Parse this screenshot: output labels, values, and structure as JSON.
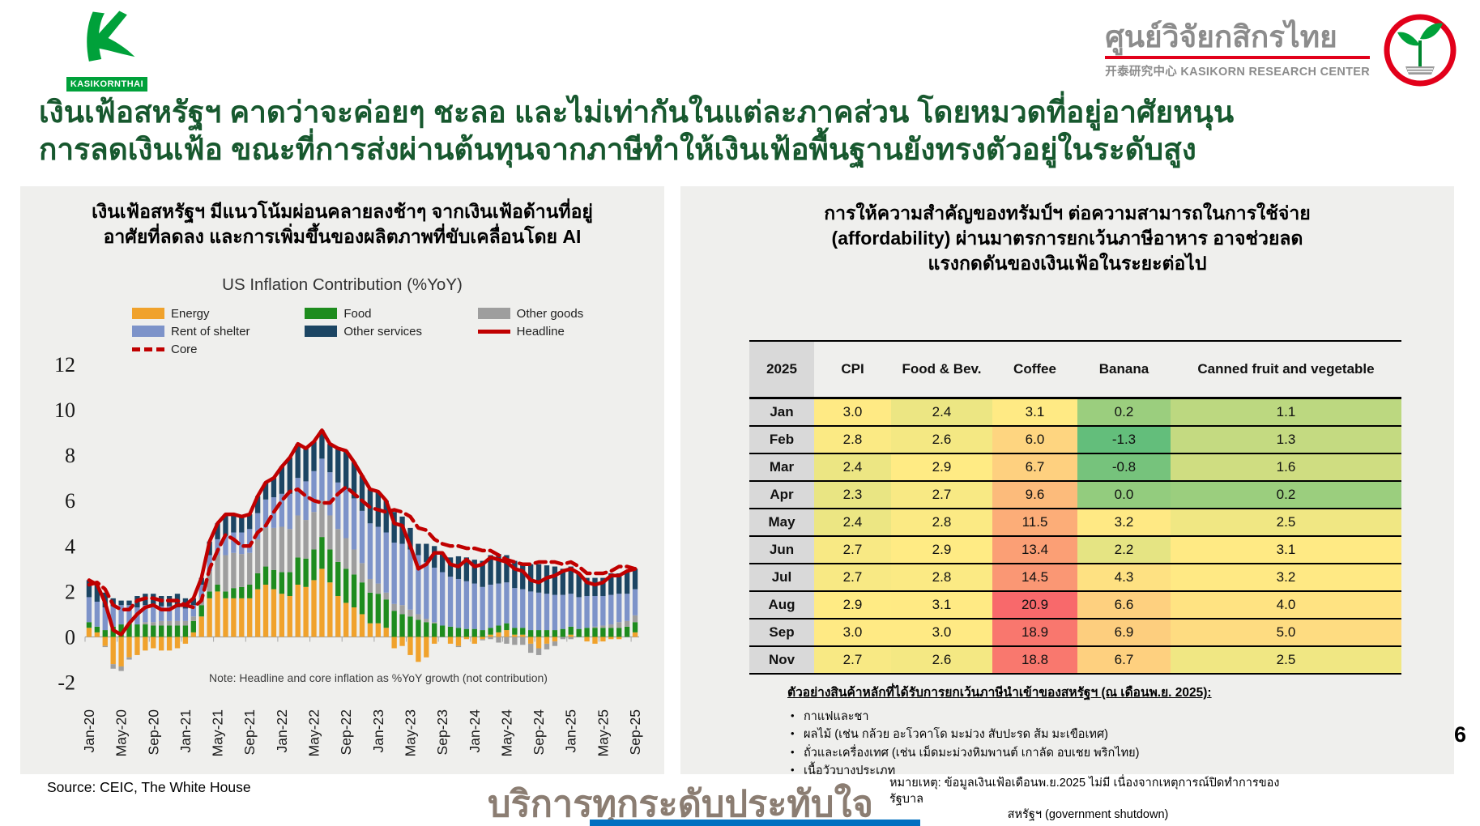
{
  "header": {
    "brand": "KASIKORNTHAI",
    "research_center_title": "ศูนย์วิจัยกสิกรไทย",
    "research_center_sub": "开泰研究中心 KASIKORN RESEARCH CENTER"
  },
  "title": {
    "line1": "เงินเฟ้อสหรัฐฯ คาดว่าจะค่อยๆ ชะลอ และไม่เท่ากันในแต่ละภาคส่วน โดยหมวดที่อยู่อาศัยหนุน",
    "line2": "การลดเงินเฟ้อ ขณะที่การส่งผ่านต้นทุนจากภาษีทำให้เงินเฟ้อพื้นฐานยังทรงตัวอยู่ในระดับสูง"
  },
  "left_panel": {
    "heading_line1": "เงินเฟ้อสหรัฐฯ มีแนวโน้มผ่อนคลายลงช้าๆ จากเงินเฟ้อด้านที่อยู่",
    "heading_line2": "อาศัยที่ลดลง และการเพิ่มขึ้นของผลิตภาพที่ขับเคลื่อนโดย AI",
    "source": "Source: CEIC, The White House"
  },
  "right_panel": {
    "heading_line1": "การให้ความสำคัญของทรัมป์ฯ ต่อความสามารถในการใช้จ่าย",
    "heading_line2": "(affordability) ผ่านมาตรการยกเว้นภาษีอาหาร อาจช่วยลด",
    "heading_line3": "แรงกดดันของเงินเฟ้อในระยะต่อไป",
    "exemptions": {
      "heading": "ตัวอย่างสินค้าหลักที่ได้รับการยกเว้นภาษีนำเข้าของสหรัฐฯ (ณ เดือนพ.ย. 2025):",
      "items": [
        "กาแฟและชา",
        "ผลไม้ (เช่น กล้วย อะโวคาโด มะม่วง สับปะรด ส้ม มะเขือเทศ)",
        "ถั่วและเครื่องเทศ (เช่น เม็ดมะม่วงหิมพานต์ เกาลัด อบเชย พริกไทย)",
        "เนื้อวัวบางประเภท"
      ]
    }
  },
  "footer": {
    "watermark": "บริการทุกระดับประทับใจ",
    "note_line1": "หมายเหตุ: ข้อมูลเงินเฟ้อเดือนพ.ย.2025 ไม่มี เนื่องจากเหตุการณ์ปิดทำการของรัฐบาล",
    "note_line2": "สหรัฐฯ (government shutdown)",
    "page_number": "6"
  },
  "chart_data": [
    {
      "type": "bar",
      "subtype": "stacked-bars-with-lines",
      "title": "US Inflation Contribution (%YoY)",
      "note": "Note: Headline and core inflation as %YoY growth (not contribution)",
      "ylim": [
        -2.8,
        12
      ],
      "yticks": [
        12,
        10,
        8,
        6,
        4,
        2,
        0,
        -2
      ],
      "xtick_labels": [
        "Jan-20",
        "May-20",
        "Sep-20",
        "Jan-21",
        "May-21",
        "Sep-21",
        "Jan-22",
        "May-22",
        "Sep-22",
        "Jan-23",
        "May-23",
        "Sep-23",
        "Jan-24",
        "May-24",
        "Sep-24",
        "Jan-25",
        "May-25",
        "Sep-25"
      ],
      "xtick_every": 4,
      "legend_rows": [
        [
          "Energy",
          "Food",
          "Other goods"
        ],
        [
          "Rent of shelter",
          "Other services",
          "Headline"
        ],
        [
          "Core"
        ]
      ],
      "series": [
        {
          "name": "Energy",
          "type": "bar",
          "color": "#F0A22C",
          "values": [
            0.4,
            0.2,
            -0.4,
            -1.2,
            -1.3,
            -0.9,
            -0.8,
            -0.6,
            -0.5,
            -0.6,
            -0.6,
            -0.5,
            -0.3,
            0.2,
            0.9,
            1.7,
            2.0,
            1.7,
            1.7,
            1.7,
            1.7,
            2.1,
            2.3,
            2.1,
            1.9,
            1.8,
            2.3,
            2.2,
            2.5,
            3.0,
            2.4,
            1.8,
            1.5,
            1.3,
            1.0,
            0.6,
            0.6,
            0.4,
            -0.5,
            -0.4,
            -0.8,
            -1.1,
            -0.9,
            -0.3,
            0.0,
            -0.3,
            -0.4,
            -0.1,
            -0.3,
            -0.1,
            0.1,
            0.2,
            0.3,
            0.1,
            0.1,
            -0.3,
            -0.5,
            -0.3,
            -0.2,
            0.0,
            0.1,
            0.0,
            -0.2,
            -0.3,
            -0.2,
            -0.1,
            -0.1,
            0.0,
            0.2
          ]
        },
        {
          "name": "Food",
          "type": "bar",
          "color": "#1E8C1E",
          "values": [
            0.25,
            0.25,
            0.3,
            0.45,
            0.55,
            0.6,
            0.55,
            0.55,
            0.5,
            0.5,
            0.5,
            0.5,
            0.5,
            0.5,
            0.5,
            0.3,
            0.3,
            0.3,
            0.45,
            0.5,
            0.6,
            0.7,
            0.8,
            0.85,
            0.95,
            1.05,
            1.2,
            1.25,
            1.35,
            1.4,
            1.45,
            1.5,
            1.5,
            1.45,
            1.4,
            1.35,
            1.3,
            1.25,
            1.15,
            1.0,
            0.9,
            0.75,
            0.65,
            0.6,
            0.5,
            0.45,
            0.4,
            0.35,
            0.35,
            0.3,
            0.3,
            0.3,
            0.3,
            0.3,
            0.3,
            0.3,
            0.3,
            0.3,
            0.3,
            0.35,
            0.35,
            0.35,
            0.4,
            0.4,
            0.4,
            0.4,
            0.4,
            0.45,
            0.45
          ]
        },
        {
          "name": "Other goods",
          "type": "bar",
          "color": "#9E9E9E",
          "values": [
            0.0,
            0.0,
            -0.05,
            -0.2,
            -0.2,
            -0.1,
            0.0,
            0.1,
            0.15,
            0.2,
            0.2,
            0.2,
            0.2,
            0.2,
            0.35,
            0.9,
            1.3,
            1.6,
            1.55,
            1.45,
            1.4,
            1.5,
            1.7,
            1.85,
            2.0,
            1.9,
            1.85,
            1.7,
            1.65,
            1.6,
            1.5,
            1.45,
            1.35,
            1.1,
            0.85,
            0.6,
            0.45,
            0.3,
            0.3,
            0.4,
            0.3,
            0.25,
            0.15,
            0.05,
            0.0,
            0.0,
            -0.05,
            0.0,
            0.0,
            -0.05,
            -0.1,
            -0.25,
            -0.3,
            -0.35,
            -0.35,
            -0.4,
            -0.3,
            -0.25,
            -0.2,
            -0.1,
            -0.1,
            0.0,
            0.0,
            0.05,
            0.1,
            0.15,
            0.25,
            0.25,
            0.3
          ]
        },
        {
          "name": "Rent of shelter",
          "type": "bar",
          "color": "#7D93C9",
          "values": [
            1.1,
            1.1,
            1.0,
            0.9,
            0.85,
            0.8,
            0.75,
            0.75,
            0.7,
            0.65,
            0.65,
            0.6,
            0.55,
            0.5,
            0.55,
            0.7,
            0.7,
            0.85,
            0.9,
            0.95,
            1.05,
            1.15,
            1.25,
            1.35,
            1.45,
            1.55,
            1.65,
            1.7,
            1.8,
            1.85,
            1.9,
            2.05,
            2.15,
            2.25,
            2.3,
            2.45,
            2.5,
            2.65,
            2.7,
            2.7,
            2.65,
            2.6,
            2.5,
            2.4,
            2.35,
            2.2,
            2.15,
            2.1,
            2.0,
            1.9,
            1.9,
            1.85,
            1.8,
            1.75,
            1.7,
            1.7,
            1.65,
            1.6,
            1.55,
            1.5,
            1.45,
            1.4,
            1.4,
            1.35,
            1.3,
            1.3,
            1.25,
            1.2,
            1.15
          ]
        },
        {
          "name": "Other services",
          "type": "bar",
          "color": "#1C4563",
          "values": [
            0.75,
            0.75,
            0.65,
            0.35,
            0.2,
            0.2,
            0.5,
            0.5,
            0.55,
            0.45,
            0.45,
            0.6,
            0.45,
            0.3,
            0.3,
            0.6,
            0.7,
            0.95,
            0.8,
            0.7,
            0.65,
            0.75,
            0.75,
            0.85,
            1.2,
            1.6,
            1.5,
            1.45,
            1.3,
            1.25,
            1.25,
            1.5,
            1.7,
            1.6,
            1.55,
            1.5,
            1.55,
            1.4,
            1.35,
            1.2,
            0.95,
            0.5,
            0.8,
            0.95,
            0.85,
            0.85,
            1.0,
            1.05,
            1.05,
            1.15,
            1.3,
            1.3,
            1.2,
            1.2,
            1.15,
            1.2,
            1.25,
            1.25,
            1.25,
            1.15,
            1.2,
            1.05,
            0.8,
            0.8,
            0.8,
            0.95,
            0.9,
            1.0,
            0.9
          ]
        },
        {
          "name": "Headline",
          "type": "line",
          "color": "#C00000",
          "values": [
            2.5,
            2.3,
            1.5,
            0.3,
            0.1,
            0.6,
            1.0,
            1.3,
            1.4,
            1.2,
            1.2,
            1.4,
            1.4,
            1.7,
            2.6,
            4.2,
            5.0,
            5.4,
            5.4,
            5.3,
            5.4,
            6.2,
            6.8,
            7.0,
            7.5,
            7.9,
            8.5,
            8.3,
            8.6,
            9.1,
            8.5,
            8.3,
            8.2,
            7.7,
            7.1,
            6.5,
            6.4,
            6.0,
            5.0,
            4.9,
            4.0,
            3.0,
            3.2,
            3.7,
            3.7,
            3.2,
            3.1,
            3.4,
            3.1,
            3.2,
            3.5,
            3.4,
            3.3,
            3.0,
            2.9,
            2.5,
            2.4,
            2.6,
            2.7,
            2.9,
            3.0,
            2.8,
            2.4,
            2.3,
            2.4,
            2.7,
            2.7,
            2.9,
            3.0
          ]
        },
        {
          "name": "Core",
          "type": "line-dashed",
          "color": "#C00000",
          "values": [
            2.3,
            2.4,
            2.1,
            1.4,
            1.2,
            1.2,
            1.6,
            1.7,
            1.7,
            1.6,
            1.6,
            1.6,
            1.4,
            1.3,
            1.6,
            3.0,
            3.8,
            4.5,
            4.3,
            4.0,
            4.0,
            4.6,
            4.9,
            5.5,
            6.0,
            6.4,
            6.5,
            6.2,
            6.0,
            5.9,
            5.9,
            6.3,
            6.6,
            6.3,
            6.0,
            5.7,
            5.6,
            5.5,
            5.6,
            5.5,
            5.3,
            4.8,
            4.7,
            4.3,
            4.1,
            4.0,
            4.0,
            3.9,
            3.9,
            3.8,
            3.8,
            3.6,
            3.4,
            3.3,
            3.2,
            3.2,
            3.3,
            3.3,
            3.3,
            3.2,
            3.3,
            3.1,
            2.8,
            2.8,
            2.8,
            2.9,
            3.1,
            3.1,
            3.0
          ]
        }
      ]
    },
    {
      "type": "table",
      "year_header": "2025",
      "columns": [
        "CPI",
        "Food & Bev.",
        "Coffee",
        "Banana",
        "Canned fruit and vegetable"
      ],
      "rows": [
        {
          "month": "Jan",
          "values": [
            "3.0",
            "2.4",
            "3.1",
            "0.2",
            "1.1"
          ]
        },
        {
          "month": "Feb",
          "values": [
            "2.8",
            "2.6",
            "6.0",
            "-1.3",
            "1.3"
          ]
        },
        {
          "month": "Mar",
          "values": [
            "2.4",
            "2.9",
            "6.7",
            "-0.8",
            "1.6"
          ]
        },
        {
          "month": "Apr",
          "values": [
            "2.3",
            "2.7",
            "9.6",
            "0.0",
            "0.2"
          ]
        },
        {
          "month": "May",
          "values": [
            "2.4",
            "2.8",
            "11.5",
            "3.2",
            "2.5"
          ]
        },
        {
          "month": "Jun",
          "values": [
            "2.7",
            "2.9",
            "13.4",
            "2.2",
            "3.1"
          ]
        },
        {
          "month": "Jul",
          "values": [
            "2.7",
            "2.8",
            "14.5",
            "4.3",
            "3.2"
          ]
        },
        {
          "month": "Aug",
          "values": [
            "2.9",
            "3.1",
            "20.9",
            "6.6",
            "4.0"
          ]
        },
        {
          "month": "Sep",
          "values": [
            "3.0",
            "3.0",
            "18.9",
            "6.9",
            "5.0"
          ]
        },
        {
          "month": "Nov",
          "values": [
            "2.7",
            "2.6",
            "18.8",
            "6.7",
            "2.5"
          ]
        }
      ],
      "color_scale": {
        "min_value": -1.3,
        "mid_value": 2.9,
        "max_value": 20.9,
        "min_color": "#63BE7B",
        "mid_color": "#FFEB84",
        "max_color": "#F8696B"
      }
    }
  ],
  "colors": {
    "title_green": "#17582E",
    "panel_bg": "#EFEFED",
    "headline_red": "#C00000",
    "brand_green": "#00A13A",
    "logo_red": "#E2001A",
    "month_col_bg": "#D9D9D9",
    "watermark_gray": "#8B7D72",
    "bottom_bar_blue": "#0070C0"
  }
}
